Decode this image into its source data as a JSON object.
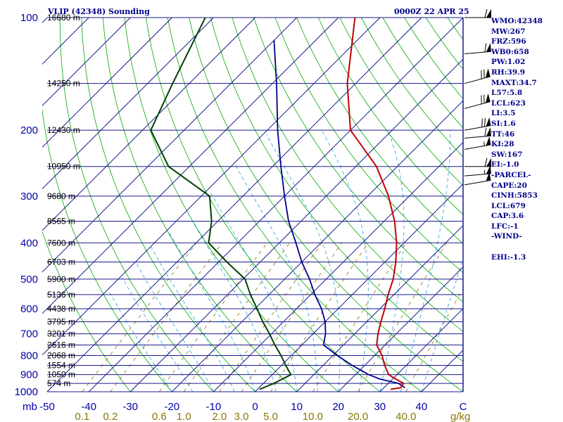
{
  "header": {
    "station": "VLIP (42348) Sounding",
    "time": "0000Z 22 APR 25"
  },
  "indices": [
    "WMO:42348",
    "MW:267",
    "FRZ:596",
    "WB0:658",
    "PW:1.02",
    "RH:39.9",
    "MAXT:34.7",
    "L57:5.8",
    "LCL:623",
    "LI:3.5",
    "SI:1.6",
    "TT:46",
    "KI:28",
    "SW:167",
    "EI:-1.0",
    "-PARCEL-",
    "CAPE:20",
    "CINH:5853",
    "LCL:679",
    "CAP:3.6",
    "LFC:-1",
    "-WIND-",
    "",
    "EHI:-1.3"
  ],
  "colors": {
    "isobar": "#1a1a8c",
    "isotherm": "#000080",
    "dry_adiabat": "#00aa00",
    "moist_adiabat": "#22a0e0",
    "mixing_ratio": "#8b7500",
    "temperature": "#c00000",
    "dewpoint": "#00008b",
    "parcel": "#004000",
    "wind_barb": "#000000"
  },
  "chart_data": {
    "type": "skew-T log-P sounding",
    "y_axis": {
      "unit": "hPa",
      "scale": "log",
      "range": [
        1000,
        100
      ]
    },
    "x_axis": {
      "unit": "°C",
      "range": [
        -50,
        50
      ],
      "ticks": [
        "-50",
        "-40",
        "-30",
        "-20",
        "-10",
        "0",
        "10",
        "20",
        "30",
        "40",
        "C"
      ]
    },
    "unit_label": "mb",
    "pressure_ticks": [
      "1000",
      "900",
      "800",
      "700",
      "600",
      "500",
      "400",
      "300",
      "200",
      "100"
    ],
    "mixing_ratio_ticks": [
      "0.1",
      "0.2",
      "0.6",
      "1.0",
      "2.0",
      "3.0",
      "5.0",
      "10.0",
      "20.0",
      "40.0"
    ],
    "mixing_ratio_unit": "g/kg",
    "height_labels": [
      {
        "p": 100,
        "label": "16680 m"
      },
      {
        "p": 150,
        "label": "14250 m"
      },
      {
        "p": 200,
        "label": "12430 m"
      },
      {
        "p": 250,
        "label": "10950 m"
      },
      {
        "p": 300,
        "label": "9680 m"
      },
      {
        "p": 350,
        "label": "8565 m"
      },
      {
        "p": 400,
        "label": "7600 m"
      },
      {
        "p": 450,
        "label": "6703 m"
      },
      {
        "p": 500,
        "label": "5900 m"
      },
      {
        "p": 550,
        "label": "5136 m"
      },
      {
        "p": 600,
        "label": "4438 m"
      },
      {
        "p": 650,
        "label": "3795 m"
      },
      {
        "p": 700,
        "label": "3201 m"
      },
      {
        "p": 750,
        "label": "2616 m"
      },
      {
        "p": 800,
        "label": "2068 m"
      },
      {
        "p": 850,
        "label": "1554 m"
      },
      {
        "p": 900,
        "label": "1050 m"
      },
      {
        "p": 950,
        "label": "574 m"
      }
    ],
    "temperature": [
      [
        985,
        32.0
      ],
      [
        975,
        34.0
      ],
      [
        950,
        33.7
      ],
      [
        925,
        30.8
      ],
      [
        900,
        28.0
      ],
      [
        850,
        24.8
      ],
      [
        800,
        21.8
      ],
      [
        750,
        18.0
      ],
      [
        700,
        15.6
      ],
      [
        650,
        13.4
      ],
      [
        600,
        11.2
      ],
      [
        550,
        8.6
      ],
      [
        500,
        6.1
      ],
      [
        450,
        2.6
      ],
      [
        400,
        -1.8
      ],
      [
        350,
        -7.5
      ],
      [
        300,
        -15.0
      ],
      [
        250,
        -25.0
      ],
      [
        200,
        -40.0
      ],
      [
        150,
        -52.0
      ],
      [
        100,
        -66.0
      ]
    ],
    "dewpoint": [
      [
        975,
        35.0
      ],
      [
        950,
        32.5
      ],
      [
        925,
        27.0
      ],
      [
        900,
        23.2
      ],
      [
        850,
        17.0
      ],
      [
        800,
        11.0
      ],
      [
        750,
        5.2
      ],
      [
        700,
        3.0
      ],
      [
        650,
        0.0
      ],
      [
        600,
        -4.0
      ],
      [
        550,
        -9.0
      ],
      [
        500,
        -14.0
      ],
      [
        450,
        -20.0
      ],
      [
        400,
        -26.0
      ],
      [
        350,
        -33.0
      ],
      [
        300,
        -40.0
      ],
      [
        250,
        -48.0
      ],
      [
        200,
        -57.5
      ],
      [
        150,
        -69.0
      ],
      [
        115,
        -80.0
      ]
    ],
    "parcel": [
      [
        985,
        0.5
      ],
      [
        950,
        2.5
      ],
      [
        900,
        4.5
      ],
      [
        850,
        1.0
      ],
      [
        800,
        -2.5
      ],
      [
        750,
        -6.5
      ],
      [
        700,
        -10.5
      ],
      [
        650,
        -15.0
      ],
      [
        600,
        -19.5
      ],
      [
        550,
        -24.5
      ],
      [
        500,
        -29.5
      ],
      [
        450,
        -38.0
      ],
      [
        400,
        -47.0
      ],
      [
        350,
        -51.5
      ],
      [
        300,
        -58.0
      ],
      [
        250,
        -75.0
      ],
      [
        200,
        -88.0
      ],
      [
        150,
        -94.0
      ],
      [
        100,
        -102.0
      ]
    ],
    "wind_barbs": [
      {
        "p": 100,
        "dir": 270,
        "kt": 60
      },
      {
        "p": 125,
        "dir": 265,
        "kt": 60
      },
      {
        "p": 150,
        "dir": 255,
        "kt": 70
      },
      {
        "p": 175,
        "dir": 255,
        "kt": 70
      },
      {
        "p": 200,
        "dir": 260,
        "kt": 70
      },
      {
        "p": 210,
        "dir": 265,
        "kt": 60
      },
      {
        "p": 225,
        "dir": 260,
        "kt": 55
      },
      {
        "p": 250,
        "dir": 270,
        "kt": 60
      },
      {
        "p": 265,
        "dir": 265,
        "kt": 55
      },
      {
        "p": 280,
        "dir": 260,
        "kt": 50
      }
    ],
    "grid": true
  }
}
